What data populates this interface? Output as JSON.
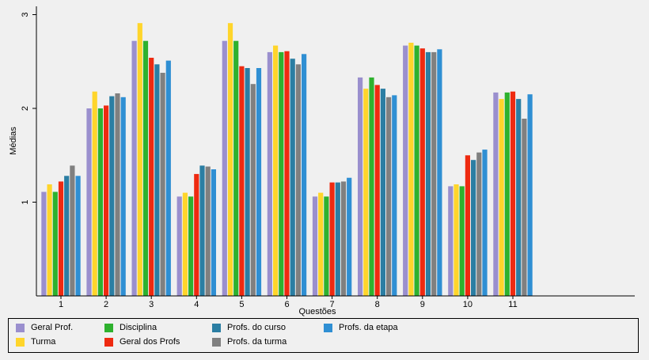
{
  "chart_data": {
    "type": "bar",
    "title": "",
    "xlabel": "Questões",
    "ylabel": "Médias",
    "ylim": [
      0,
      3.1
    ],
    "yticks": [
      1,
      2,
      3
    ],
    "grid": false,
    "legend_position": "bottom",
    "categories": [
      "1",
      "2",
      "3",
      "4",
      "5",
      "6",
      "7",
      "8",
      "9",
      "10",
      "11"
    ],
    "series": [
      {
        "name": "Geral Prof.",
        "color": "#9a8fce",
        "values": [
          1.11,
          2.0,
          2.72,
          1.06,
          2.72,
          2.6,
          1.06,
          2.33,
          2.67,
          1.17,
          2.17
        ]
      },
      {
        "name": "Turma",
        "color": "#ffd52b",
        "values": [
          1.19,
          2.18,
          2.91,
          1.1,
          2.91,
          2.67,
          1.1,
          2.21,
          2.7,
          1.19,
          2.1
        ]
      },
      {
        "name": "Disciplina",
        "color": "#2eb12e",
        "values": [
          1.11,
          2.0,
          2.72,
          1.06,
          2.72,
          2.6,
          1.06,
          2.33,
          2.67,
          1.17,
          2.17
        ]
      },
      {
        "name": "Geral dos Profs",
        "color": "#ee2a10",
        "values": [
          1.22,
          2.03,
          2.54,
          1.3,
          2.45,
          2.61,
          1.21,
          2.25,
          2.64,
          1.5,
          2.18
        ]
      },
      {
        "name": "Profs. do curso",
        "color": "#2b7ea3",
        "values": [
          1.28,
          2.13,
          2.47,
          1.39,
          2.43,
          2.53,
          1.21,
          2.21,
          2.6,
          1.45,
          2.1
        ]
      },
      {
        "name": "Profs. da turma",
        "color": "#808080",
        "values": [
          1.39,
          2.16,
          2.38,
          1.38,
          2.26,
          2.47,
          1.22,
          2.12,
          2.6,
          1.53,
          1.89
        ]
      },
      {
        "name": "Profs. da etapa",
        "color": "#2f8fd3",
        "values": [
          1.28,
          2.12,
          2.51,
          1.35,
          2.43,
          2.58,
          1.26,
          2.14,
          2.63,
          1.56,
          2.15
        ]
      }
    ]
  }
}
